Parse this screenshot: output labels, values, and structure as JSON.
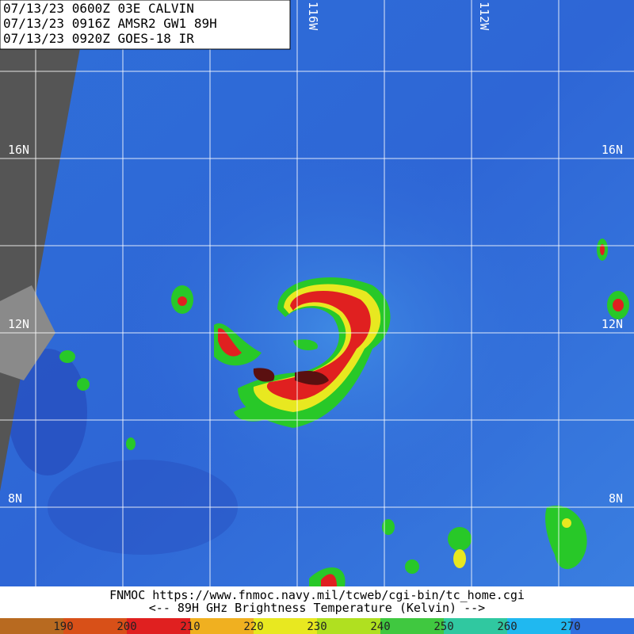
{
  "header": {
    "lines": [
      "07/13/23 0600Z  03E CALVIN",
      "07/13/23 0916Z  AMSR2 GW1 89H",
      "07/13/23 0920Z  GOES-18 IR"
    ]
  },
  "grid": {
    "longitudes": [
      "116W",
      "112W"
    ],
    "latitudes": [
      "16N",
      "12N",
      "8N"
    ]
  },
  "footer": {
    "lines": [
      "FNMOC https://www.fnmoc.navy.mil/tcweb/cgi-bin/tc_home.cgi",
      "<--  89H GHz Brightness Temperature (Kelvin)  -->"
    ]
  },
  "colorbar": {
    "labels": [
      "190",
      "200",
      "210",
      "220",
      "230",
      "240",
      "250",
      "260",
      "270"
    ]
  }
}
